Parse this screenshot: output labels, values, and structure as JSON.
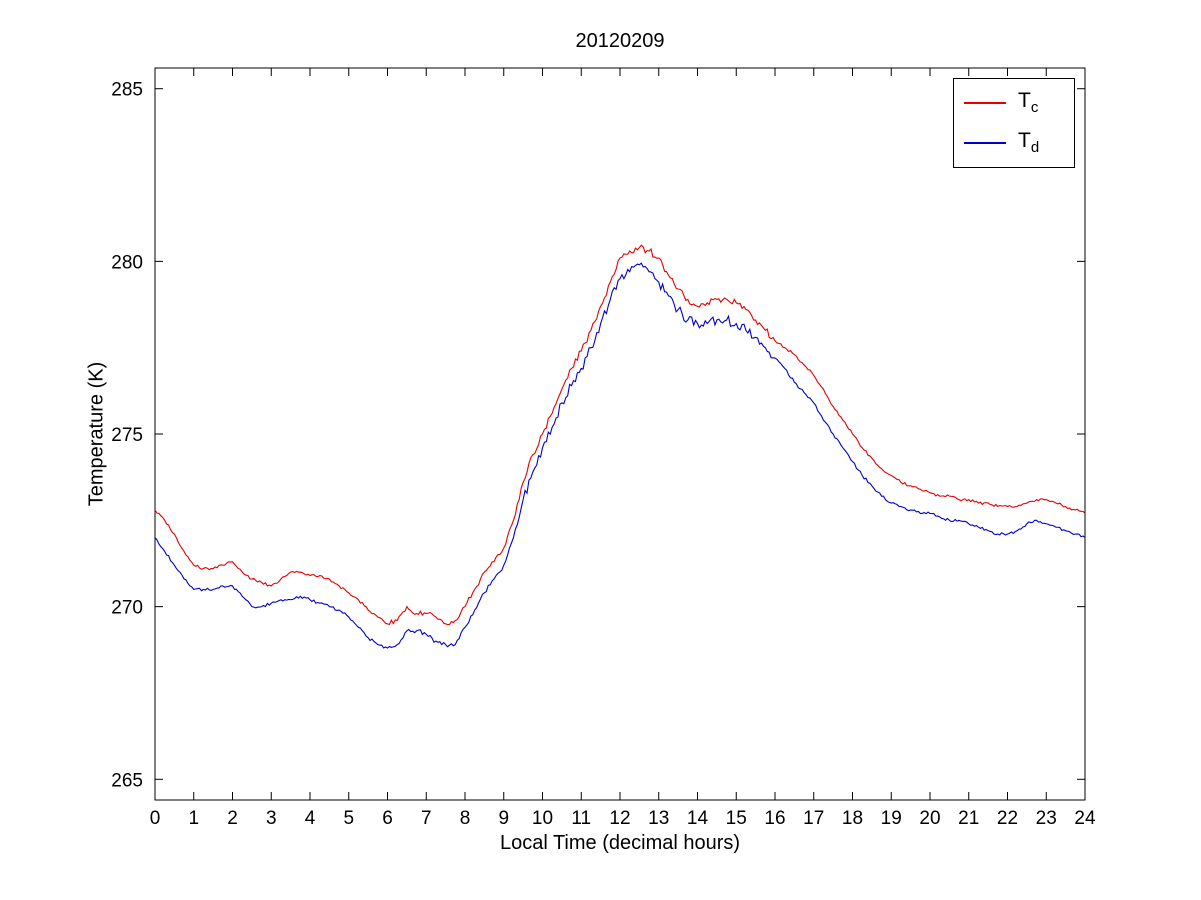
{
  "figure": {
    "background": "#ffffff",
    "axes_color": "#000000"
  },
  "chart_data": {
    "type": "line",
    "title": "20120209",
    "xlabel": "Local Time (decimal hours)",
    "ylabel": "Temperature (K)",
    "xlim": [
      0,
      24
    ],
    "ylim": [
      264.4,
      285.6
    ],
    "xticks": [
      0,
      1,
      2,
      3,
      4,
      5,
      6,
      7,
      8,
      9,
      10,
      11,
      12,
      13,
      14,
      15,
      16,
      17,
      18,
      19,
      20,
      21,
      22,
      23,
      24
    ],
    "yticks": [
      265,
      270,
      275,
      280,
      285
    ],
    "grid": false,
    "legend_position": "top-right",
    "x": [
      0,
      0.25,
      0.5,
      0.75,
      1,
      1.25,
      1.5,
      1.75,
      2,
      2.25,
      2.5,
      2.75,
      3,
      3.25,
      3.5,
      3.75,
      4,
      4.25,
      4.5,
      4.75,
      5,
      5.25,
      5.5,
      5.75,
      6,
      6.25,
      6.5,
      6.75,
      7,
      7.25,
      7.5,
      7.75,
      8,
      8.25,
      8.5,
      8.75,
      9,
      9.25,
      9.5,
      9.75,
      10,
      10.25,
      10.5,
      10.75,
      11,
      11.25,
      11.5,
      11.75,
      12,
      12.25,
      12.5,
      12.75,
      13,
      13.25,
      13.5,
      13.75,
      14,
      14.25,
      14.5,
      14.75,
      15,
      15.25,
      15.5,
      15.75,
      16,
      16.25,
      16.5,
      16.75,
      17,
      17.25,
      17.5,
      17.75,
      18,
      18.25,
      18.5,
      18.75,
      19,
      19.25,
      19.5,
      19.75,
      20,
      20.25,
      20.5,
      20.75,
      21,
      21.25,
      21.5,
      21.75,
      22,
      22.25,
      22.5,
      22.75,
      23,
      23.25,
      23.5,
      23.75,
      24
    ],
    "series": [
      {
        "name": "T_c",
        "label_main": "T",
        "label_sub": "c",
        "color": "#e60000",
        "values": [
          272.8,
          272.5,
          272.1,
          271.6,
          271.2,
          271.1,
          271.1,
          271.2,
          271.3,
          271.0,
          270.8,
          270.7,
          270.6,
          270.8,
          271.0,
          271.0,
          270.9,
          270.9,
          270.8,
          270.6,
          270.4,
          270.2,
          269.9,
          269.7,
          269.5,
          269.6,
          270.0,
          269.8,
          269.8,
          269.7,
          269.5,
          269.6,
          270.0,
          270.5,
          271.0,
          271.3,
          271.7,
          272.5,
          273.6,
          274.4,
          275.0,
          275.6,
          276.3,
          276.9,
          277.4,
          278.0,
          278.7,
          279.4,
          280.1,
          280.3,
          280.4,
          280.3,
          280.1,
          279.6,
          279.2,
          278.9,
          278.7,
          278.8,
          278.9,
          278.9,
          278.8,
          278.6,
          278.3,
          278.0,
          277.7,
          277.5,
          277.3,
          277.0,
          276.7,
          276.3,
          275.8,
          275.4,
          275.0,
          274.6,
          274.3,
          274.0,
          273.8,
          273.6,
          273.5,
          273.4,
          273.3,
          273.2,
          273.2,
          273.1,
          273.1,
          273.0,
          273.0,
          272.9,
          272.9,
          272.9,
          273.0,
          273.1,
          273.1,
          273.0,
          272.9,
          272.8,
          272.7
        ]
      },
      {
        "name": "T_d",
        "label_main": "T",
        "label_sub": "d",
        "color": "#0000cd",
        "values": [
          272.0,
          271.6,
          271.2,
          270.8,
          270.5,
          270.5,
          270.5,
          270.6,
          270.6,
          270.3,
          270.0,
          270.0,
          270.1,
          270.2,
          270.2,
          270.3,
          270.2,
          270.1,
          270.0,
          269.9,
          269.7,
          269.4,
          269.1,
          268.9,
          268.8,
          268.9,
          269.3,
          269.3,
          269.2,
          269.0,
          268.9,
          268.9,
          269.4,
          269.9,
          270.4,
          270.8,
          271.2,
          272.0,
          273.1,
          273.9,
          274.6,
          275.2,
          275.9,
          276.4,
          276.9,
          277.5,
          278.2,
          278.9,
          279.5,
          279.7,
          279.9,
          279.7,
          279.4,
          279.0,
          278.6,
          278.3,
          278.2,
          278.2,
          278.3,
          278.3,
          278.2,
          278.0,
          277.8,
          277.5,
          277.2,
          276.9,
          276.5,
          276.2,
          275.9,
          275.4,
          275.0,
          274.6,
          274.2,
          273.8,
          273.5,
          273.2,
          273.0,
          272.9,
          272.8,
          272.7,
          272.7,
          272.6,
          272.5,
          272.5,
          272.4,
          272.3,
          272.2,
          272.1,
          272.1,
          272.2,
          272.4,
          272.5,
          272.4,
          272.3,
          272.2,
          272.1,
          272.0
        ]
      }
    ]
  }
}
